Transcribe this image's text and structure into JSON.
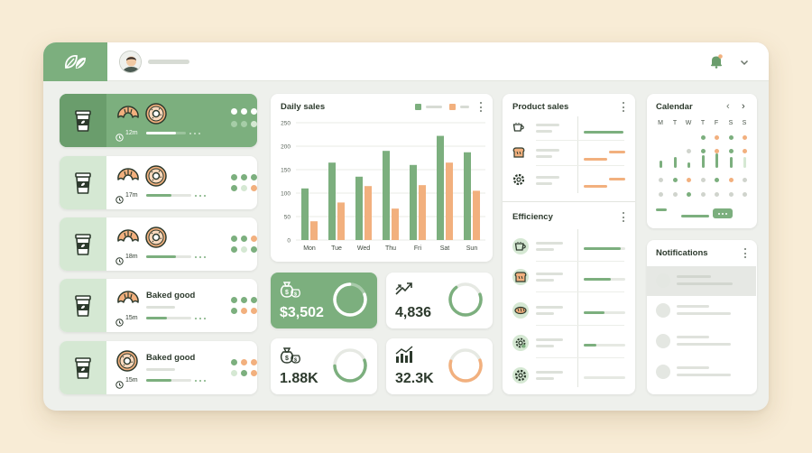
{
  "header": {
    "logo_icon": "leaf-logo-icon",
    "avatar_icon": "user-avatar",
    "notification_icon": "bell-icon",
    "menu_icon": "chevron-down-icon"
  },
  "orders": [
    {
      "time": "12m",
      "label": "",
      "pastries": [
        "croissant",
        "donut"
      ],
      "progress": 0.75,
      "active": true
    },
    {
      "time": "17m",
      "label": "",
      "pastries": [
        "croissant",
        "donut"
      ],
      "progress": 0.55,
      "active": false
    },
    {
      "time": "18m",
      "label": "",
      "pastries": [
        "croissant",
        "donut"
      ],
      "progress": 0.65,
      "active": false
    },
    {
      "time": "15m",
      "label": "Baked good",
      "pastries": [
        "croissant"
      ],
      "progress": 0.45,
      "active": false
    },
    {
      "time": "15m",
      "label": "Baked good",
      "pastries": [
        "donut"
      ],
      "progress": 0.55,
      "active": false
    }
  ],
  "daily_sales": {
    "title": "Daily sales"
  },
  "chart_data": {
    "type": "bar",
    "title": "Daily sales",
    "categories": [
      "Mon",
      "Tue",
      "Wed",
      "Thu",
      "Fri",
      "Sat",
      "Sun"
    ],
    "series": [
      {
        "values": [
          110,
          165,
          135,
          190,
          160,
          222,
          187
        ],
        "color": "#7caf7e"
      },
      {
        "values": [
          40,
          80,
          115,
          67,
          117,
          165,
          105
        ],
        "color": "#f2b07e"
      }
    ],
    "y_ticks": [
      "0",
      "50",
      "100",
      "150",
      "200",
      "250"
    ],
    "ylim": [
      0,
      250
    ],
    "grid": true,
    "legend": "top-right"
  },
  "kpis": [
    {
      "value": "$3,502",
      "icon": "money-bag-icon",
      "gauge": 0.8,
      "color": "#ffffff",
      "green": true
    },
    {
      "value": "4,836",
      "icon": "trending-up-icon",
      "gauge": 0.7,
      "color": "#7caf7e",
      "green": false
    },
    {
      "value": "1.88K",
      "icon": "money-bag-icon",
      "gauge": 0.55,
      "color": "#7caf7e",
      "green": false
    },
    {
      "value": "32.3K",
      "icon": "bar-chart-trend-icon",
      "gauge": 0.6,
      "color": "#f2b07e",
      "green": false
    }
  ],
  "product_sales": {
    "title": "Product sales",
    "rows": [
      {
        "icon": "coffee-cup-icon"
      },
      {
        "icon": "bread-icon"
      },
      {
        "icon": "gear-icon"
      }
    ]
  },
  "efficiency": {
    "title": "Efficiency",
    "rows": [
      {
        "icon": "coffee-cup-icon",
        "fill": 0.9
      },
      {
        "icon": "bread-icon",
        "fill": 0.65
      },
      {
        "icon": "baguette-icon",
        "fill": 0.5
      },
      {
        "icon": "settings-icon",
        "fill": 0.3
      },
      {
        "icon": "gear-icon",
        "fill": 0
      }
    ]
  },
  "calendar": {
    "title": "Calendar",
    "weekdays": [
      "M",
      "T",
      "W",
      "T",
      "F",
      "S",
      "S"
    ]
  },
  "notifications": {
    "title": "Notifications"
  },
  "colors": {
    "green": "#7caf7e",
    "light_green": "#d5e8d3",
    "orange": "#f2b07e",
    "background": "#f8ecd6"
  }
}
